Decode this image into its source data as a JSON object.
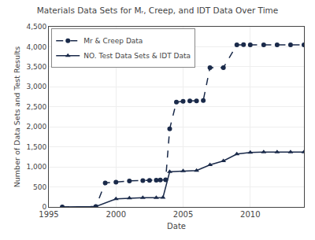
{
  "chart_data": {
    "type": "line",
    "title": "Materials Data Sets for Mᵣ, Creep, and IDT Data Over Time",
    "xlabel": "Date",
    "ylabel": "Number of Data Sets and Test Results",
    "series": [
      {
        "name": "Mr & Creep Data",
        "color": "#1a2a4a",
        "marker": "circle",
        "line_style": "dashed",
        "x": [
          1996,
          1998.5,
          1999.2,
          2000,
          2001,
          2002,
          2002.5,
          2003,
          2003.3,
          2003.7,
          2004,
          2004.5,
          2005,
          2005.5,
          2006,
          2006.5,
          2007,
          2008,
          2009,
          2009.5,
          2010,
          2011,
          2012,
          2013,
          2014
        ],
        "values": [
          0,
          10,
          600,
          620,
          650,
          660,
          665,
          670,
          675,
          680,
          1950,
          2620,
          2640,
          2650,
          2650,
          2660,
          3480,
          3480,
          4050,
          4055,
          4050,
          4050,
          4050,
          4050,
          4050
        ]
      },
      {
        "name": "NO. Test Data Sets & IDT Data",
        "color": "#1a2a4a",
        "marker": "triangle",
        "line_style": "solid",
        "x": [
          1996,
          1998.5,
          2000,
          2001,
          2002,
          2003,
          2003.5,
          2004,
          2005,
          2006,
          2007,
          2008,
          2009,
          2010,
          2011,
          2012,
          2013,
          2014
        ],
        "values": [
          0,
          10,
          200,
          220,
          230,
          230,
          235,
          880,
          900,
          910,
          1050,
          1150,
          1320,
          1360,
          1370,
          1370,
          1370,
          1370
        ]
      }
    ],
    "xlim": [
      1995,
      2014
    ],
    "xticks": [
      1995,
      2000,
      2005,
      2010
    ],
    "ylim": [
      0,
      4500
    ],
    "yticks": [
      0,
      500,
      {
        "value": 1000,
        "label": "1,000"
      },
      {
        "value": 1500,
        "label": "1,500"
      },
      {
        "value": 2000,
        "label": "2,000"
      },
      {
        "value": 2500,
        "label": "2,500"
      },
      {
        "value": 3000,
        "label": "3,000"
      },
      {
        "value": 3500,
        "label": "3,500"
      },
      {
        "value": 4000,
        "label": "4,000"
      },
      {
        "value": 4500,
        "label": "4,500"
      }
    ],
    "grid": true,
    "legend": "upper left"
  }
}
